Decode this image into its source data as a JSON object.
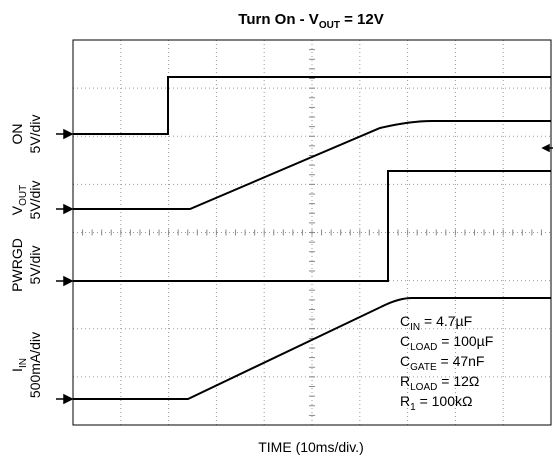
{
  "title": {
    "text": "Turn On - V",
    "sub": "OUT",
    "rest": " = 12V"
  },
  "channels": [
    {
      "name": "ON",
      "scale": "5V/div"
    },
    {
      "name": "V",
      "sub": "OUT",
      "scale": "5V/div"
    },
    {
      "name": "PWRGD",
      "scale": "5V/div"
    },
    {
      "name": "I",
      "sub": "IN",
      "scale": "500mA/div"
    }
  ],
  "xlabel": "TIME (10ms/div.)",
  "notes": [
    {
      "a": "C",
      "sub": "IN",
      "b": " = 4.7µF"
    },
    {
      "a": "C",
      "sub": "LOAD",
      "b": " = 100µF"
    },
    {
      "a": "C",
      "sub": "GATE",
      "b": " = 47nF"
    },
    {
      "a": "R",
      "sub": "LOAD",
      "b": " = 12Ω"
    },
    {
      "a": "R",
      "sub": "1",
      "b": " = 100kΩ"
    }
  ]
}
